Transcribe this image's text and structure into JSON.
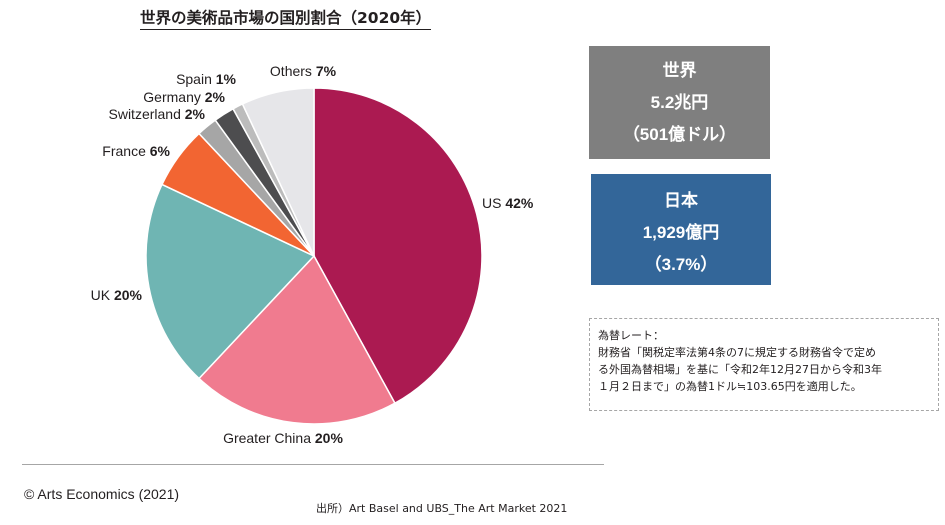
{
  "title": "世界の美術品市場の国別割合（2020年）",
  "chart_data": {
    "type": "pie",
    "title": "世界の美術品市場の国別割合（2020年）",
    "slices": [
      {
        "name": "US",
        "value": 42,
        "label": "42%",
        "color": "#ab1a51"
      },
      {
        "name": "Greater China",
        "value": 20,
        "label": "20%",
        "color": "#f07b8f"
      },
      {
        "name": "UK",
        "value": 20,
        "label": "20%",
        "color": "#6fb5b3"
      },
      {
        "name": "France",
        "value": 6,
        "label": "6%",
        "color": "#f26532"
      },
      {
        "name": "Switzerland",
        "value": 2,
        "label": "2%",
        "color": "#a6a6a6"
      },
      {
        "name": "Germany",
        "value": 2,
        "label": "2%",
        "color": "#4d4d4f"
      },
      {
        "name": "Spain",
        "value": 1,
        "label": "1%",
        "color": "#bcbcbc"
      },
      {
        "name": "Others",
        "value": 7,
        "label": "7%",
        "color": "#e6e6e9"
      }
    ]
  },
  "world_box": {
    "line1": "世界",
    "line2": "5.2兆円",
    "line3": "（501億ドル）",
    "color": "#7f7f7f"
  },
  "japan_box": {
    "line1": "日本",
    "line2": "1,929億円",
    "line3": "（3.7%）",
    "color": "#336699"
  },
  "note": {
    "line1": "為替レート：",
    "line2": "財務省「関税定率法第4条の7に規定する財務省令で定め",
    "line3": "る外国為替相場」を基に「令和2年12月27日から令和3年",
    "line4": "１月２日まで」の為替1ドル≒103.65円を適用した。"
  },
  "credit": "© Arts Economics (2021)",
  "source": "出所）Art Basel and UBS_The Art Market 2021"
}
